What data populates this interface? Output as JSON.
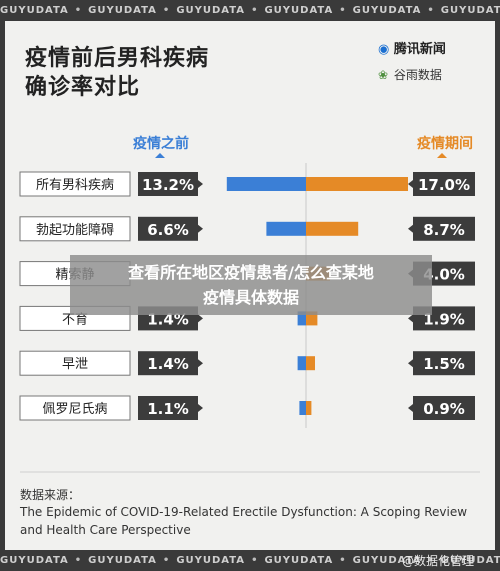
{
  "strip_words": [
    "GUYUDATA",
    "GUYUDATA",
    "GUYUDATA",
    "GUYUDATA",
    "GUYUDATA",
    "GUYUDATA"
  ],
  "title": {
    "line1": "疫情前后男科疾病",
    "line2": "确诊率对比"
  },
  "logos": {
    "tencent_news": "腾讯新闻",
    "guyu_data": "谷雨数据"
  },
  "chart_data": {
    "type": "bar",
    "subtype": "diverging-horizontal",
    "categories": [
      "所有男科疾病",
      "勃起功能障碍",
      "精索静脉曲张",
      "不育",
      "早泄",
      "佩罗尼氏病"
    ],
    "series": [
      {
        "name": "疫情之前",
        "values": [
          13.2,
          6.6,
          null,
          1.4,
          1.4,
          1.1
        ],
        "labels": [
          "13.2%",
          "6.6%",
          "",
          "1.4%",
          "1.4%",
          "1.1%"
        ],
        "color": "#3b7fd6"
      },
      {
        "name": "疫情期间",
        "values": [
          17.0,
          8.7,
          4.0,
          1.9,
          1.5,
          0.9
        ],
        "labels": [
          "17.0%",
          "8.7%",
          "4.0%",
          "1.9%",
          "1.5%",
          "0.9%"
        ],
        "color": "#e58a26"
      }
    ],
    "category_labels_visible": [
      "所有男科疾病",
      "勃起功能障碍",
      "精索静",
      "不育",
      "早泄",
      "佩罗尼氏病"
    ],
    "legend": "top-center"
  },
  "source": {
    "heading": "数据来源：",
    "text": "The Epidemic of COVID-19-Related Erectile Dysfunction: A Scoping Review and Health Care Perspective"
  },
  "overlay": {
    "line1": "查看所在地区疫情患者/怎么查某地",
    "line2": "疫情具体数据"
  },
  "watermark": "@数据化管理"
}
